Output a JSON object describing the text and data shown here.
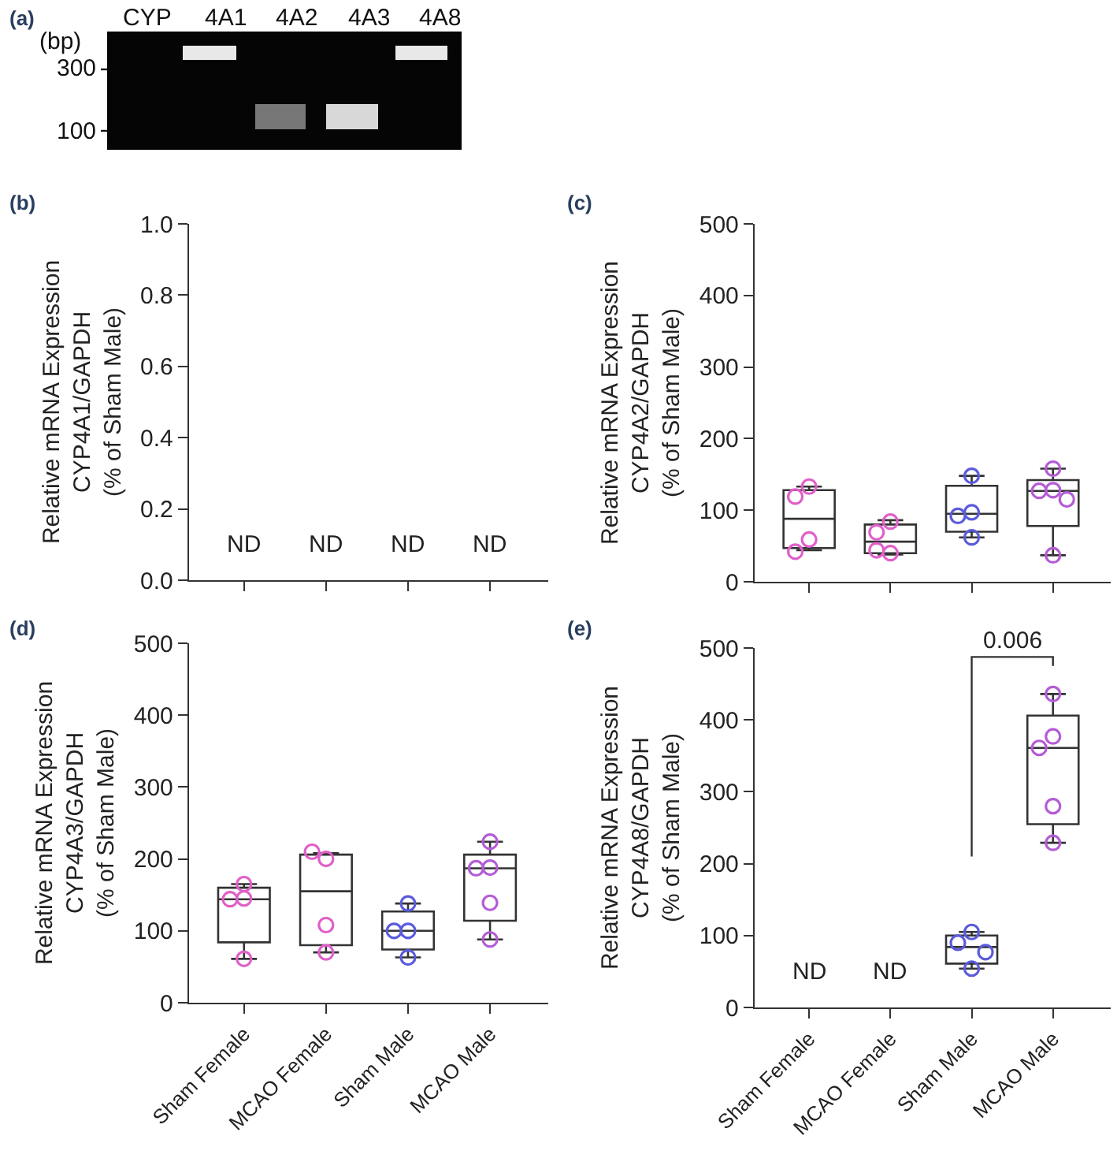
{
  "chart_data": [
    {
      "type": "other",
      "title": "(a)",
      "annotations": [
        "CYP",
        "4A1",
        "4A2",
        "4A3",
        "4A8",
        "(bp)",
        "300",
        "100"
      ]
    },
    {
      "type": "box",
      "title": "(b)",
      "ylabel": "Relative mRNA Expression\nCYP4A1/GAPDH\n(% of Sham Male)",
      "categories": [
        "Sham Female",
        "MCAO Female",
        "Sham Male",
        "MCAO Male"
      ],
      "boxes": [
        null,
        null,
        null,
        null
      ],
      "ylim": [
        0,
        1
      ],
      "yticks": [
        {
          "value": 0,
          "label": "0.0"
        },
        0.2,
        0.4,
        0.6,
        0.8,
        {
          "value": 1,
          "label": "1.0"
        }
      ],
      "tick_labels": "y",
      "annotations": [
        "ND",
        "ND",
        "ND",
        "ND"
      ]
    },
    {
      "type": "box",
      "title": "(c)",
      "ylabel": "Relative mRNA Expression\nCYP4A2/GAPDH\n(% of Sham Male)",
      "categories": [
        "Sham Female",
        "MCAO Female",
        "Sham Male",
        "MCAO Male"
      ],
      "ylim": [
        0,
        500
      ],
      "yticks": [
        0,
        100,
        200,
        300,
        400,
        500
      ],
      "tick_labels": "y",
      "marker": "circle",
      "boxes": [
        {
          "low": 44,
          "q1": 47,
          "median": 88,
          "q3": 128,
          "high": 133
        },
        {
          "low": 38,
          "q1": 40,
          "median": 56,
          "q3": 80,
          "high": 86
        },
        {
          "low": 62,
          "q1": 70,
          "median": 95,
          "q3": 134,
          "high": 148
        },
        {
          "low": 37,
          "q1": 78,
          "median": 127,
          "q3": 142,
          "high": 158
        }
      ],
      "series": [
        {
          "type": "scatter",
          "x": [
            "Sham Female",
            "Sham Female",
            "Sham Female",
            "Sham Female",
            "MCAO Female",
            "MCAO Female",
            "MCAO Female",
            "MCAO Female",
            "Sham Male",
            "Sham Male",
            "Sham Male",
            "Sham Male",
            "MCAO Male",
            "MCAO Male",
            "MCAO Male",
            "MCAO Male",
            "MCAO Male"
          ],
          "values": [
            133,
            119,
            59,
            42,
            84,
            69,
            40,
            44,
            148,
            97,
            92,
            62,
            158,
            128,
            127,
            115,
            37
          ],
          "colors": [
            "#e060c8",
            "#e060c8",
            "#e060c8",
            "#e060c8",
            "#e060c8",
            "#e060c8",
            "#e060c8",
            "#e060c8",
            "#5b5bdc",
            "#5b5bdc",
            "#5b5bdc",
            "#5b5bdc",
            "#b45cd6",
            "#b45cd6",
            "#b45cd6",
            "#b45cd6",
            "#b45cd6"
          ]
        }
      ]
    },
    {
      "type": "box",
      "title": "(d)",
      "ylabel": "Relative mRNA Expression\nCYP4A3/GAPDH\n(% of Sham Male)",
      "categories": [
        "Sham Female",
        "MCAO Female",
        "Sham Male",
        "MCAO Male"
      ],
      "ylim": [
        0,
        500
      ],
      "yticks": [
        0,
        100,
        200,
        300,
        400,
        500
      ],
      "marker": "circle",
      "boxes": [
        {
          "low": 61,
          "q1": 84,
          "median": 144,
          "q3": 160,
          "high": 165
        },
        {
          "low": 70,
          "q1": 80,
          "median": 155,
          "q3": 206,
          "high": 208
        },
        {
          "low": 63,
          "q1": 74,
          "median": 100,
          "q3": 127,
          "high": 138
        },
        {
          "low": 88,
          "q1": 114,
          "median": 187,
          "q3": 206,
          "high": 224
        }
      ],
      "series": [
        {
          "type": "scatter",
          "x": [
            "Sham Female",
            "Sham Female",
            "Sham Female",
            "Sham Female",
            "MCAO Female",
            "MCAO Female",
            "MCAO Female",
            "MCAO Female",
            "Sham Male",
            "Sham Male",
            "Sham Male",
            "Sham Male",
            "MCAO Male",
            "MCAO Male",
            "MCAO Male",
            "MCAO Male",
            "MCAO Male"
          ],
          "values": [
            165,
            145,
            144,
            61,
            200,
            210,
            108,
            70,
            138,
            100,
            100,
            63,
            224,
            188,
            187,
            139,
            88
          ],
          "colors": [
            "#e060c8",
            "#e060c8",
            "#e060c8",
            "#e060c8",
            "#e060c8",
            "#e060c8",
            "#e060c8",
            "#e060c8",
            "#5b5bdc",
            "#5b5bdc",
            "#5b5bdc",
            "#5b5bdc",
            "#b45cd6",
            "#b45cd6",
            "#b45cd6",
            "#b45cd6",
            "#b45cd6"
          ]
        }
      ]
    },
    {
      "type": "box",
      "title": "(e)",
      "ylabel": "Relative mRNA Expression\nCYP4A8/GAPDH\n(% of Sham Male)",
      "categories": [
        "Sham Female",
        "MCAO Female",
        "Sham Male",
        "MCAO Male"
      ],
      "ylim": [
        0,
        500
      ],
      "yticks": [
        0,
        100,
        200,
        300,
        400,
        500
      ],
      "marker": "circle",
      "boxes": [
        null,
        null,
        {
          "low": 54,
          "q1": 61,
          "median": 84,
          "q3": 100,
          "high": 105
        },
        {
          "low": 229,
          "q1": 255,
          "median": 361,
          "q3": 406,
          "high": 436
        }
      ],
      "series": [
        {
          "type": "scatter",
          "x": [
            "Sham Male",
            "Sham Male",
            "Sham Male",
            "Sham Male",
            "MCAO Male",
            "MCAO Male",
            "MCAO Male",
            "MCAO Male",
            "MCAO Male"
          ],
          "values": [
            105,
            90,
            77,
            54,
            436,
            377,
            361,
            280,
            229
          ],
          "colors": [
            "#5b5bdc",
            "#5b5bdc",
            "#5b5bdc",
            "#5b5bdc",
            "#b45cd6",
            "#b45cd6",
            "#b45cd6",
            "#b45cd6",
            "#b45cd6"
          ]
        }
      ],
      "annotations": [
        "ND",
        "ND",
        "0.006"
      ]
    }
  ]
}
